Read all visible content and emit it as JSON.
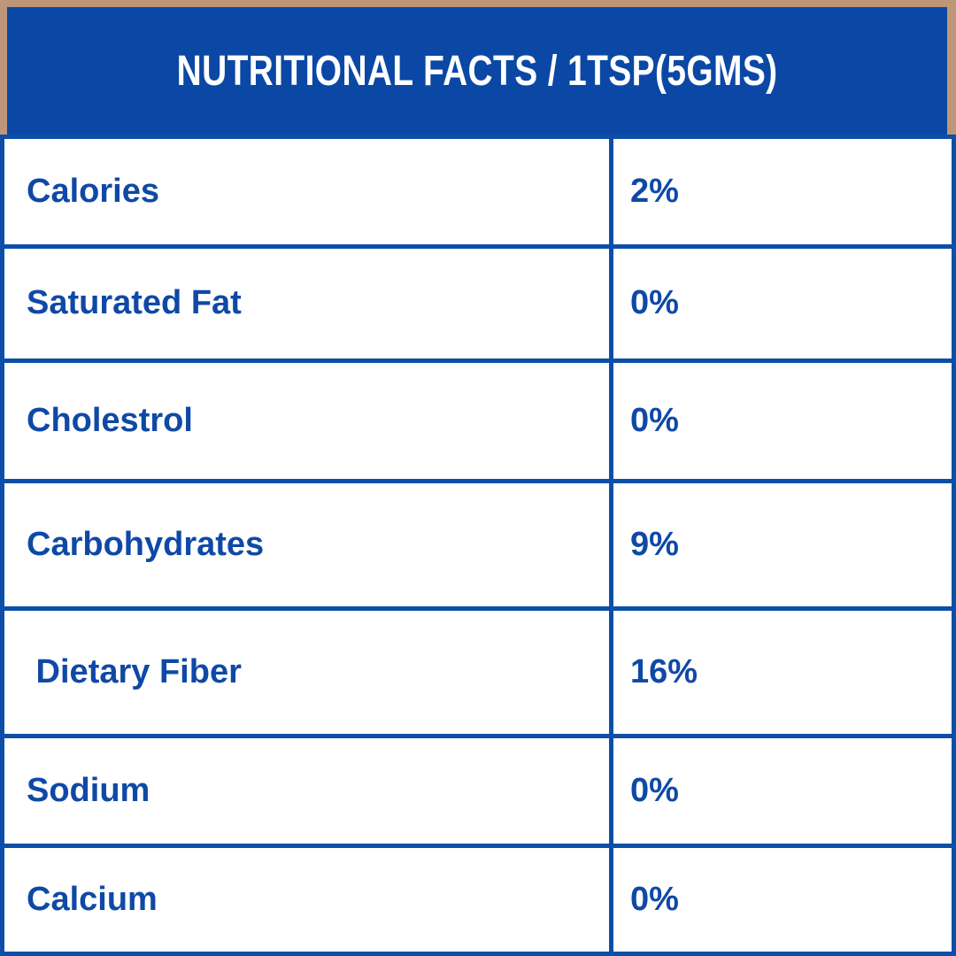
{
  "header": {
    "title": "NUTRITIONAL FACTS / 1TSP(5GMS)"
  },
  "table": {
    "rows": [
      {
        "label": "Calories",
        "value": "2%"
      },
      {
        "label": "Saturated Fat",
        "value": "0%"
      },
      {
        "label": "Cholestrol",
        "value": "0%"
      },
      {
        "label": "Carbohydrates",
        "value": "9%"
      },
      {
        "label": " Dietary Fiber",
        "value": "16%"
      },
      {
        "label": "Sodium",
        "value": "0%"
      },
      {
        "label": "Calcium",
        "value": "0%"
      }
    ]
  },
  "colors": {
    "frame": "#BE9778",
    "header_bg": "#0B48A5",
    "border": "#0D4FA8",
    "text": "#0F49A6",
    "row_bg": "#FFFFFF",
    "header_text": "#FFFFFF"
  }
}
